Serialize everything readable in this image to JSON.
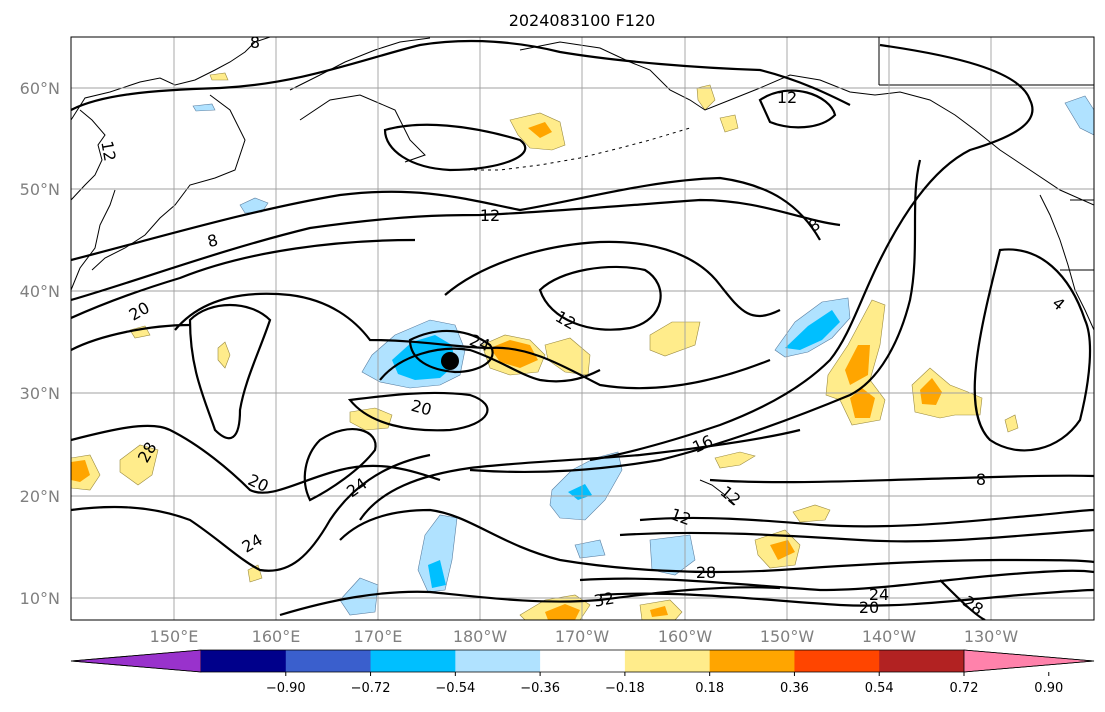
{
  "title": "2024083100 F120",
  "lat_labels": [
    "60°N",
    "50°N",
    "40°N",
    "30°N",
    "20°N",
    "10°N"
  ],
  "lon_labels": [
    "150°E",
    "160°E",
    "170°E",
    "180°W",
    "170°W",
    "160°W",
    "150°W",
    "140°W",
    "130°W"
  ],
  "colorbar": {
    "colors": [
      "#9932cc",
      "#00008b",
      "#3a5fcd",
      "#00bfff",
      "#b0e2ff",
      "#ffffff",
      "#ffec8b",
      "#ffa500",
      "#ff4500",
      "#b22222",
      "#ff82ab"
    ],
    "tick_labels": [
      "−0.90",
      "−0.72",
      "−0.54",
      "−0.36",
      "−0.18",
      "0.18",
      "0.36",
      "0.54",
      "0.72",
      "0.90"
    ]
  },
  "contour_labels": [
    "8",
    "12",
    "12",
    "12",
    "8",
    "12",
    "20",
    "8",
    "24",
    "20",
    "20",
    "28",
    "24",
    "24",
    "16",
    "12",
    "28",
    "32",
    "24",
    "20",
    "28",
    "8",
    "4",
    "12"
  ],
  "storm_marker": "storm-center"
}
